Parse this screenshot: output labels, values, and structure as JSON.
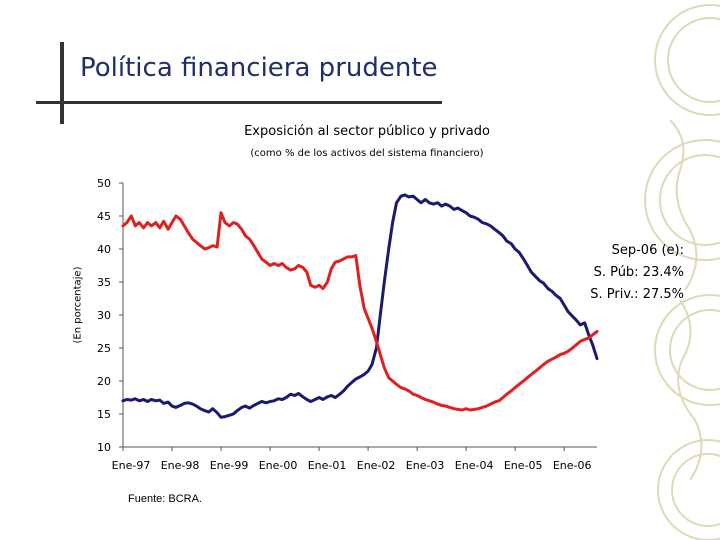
{
  "slide": {
    "title": "Política financiera prudente",
    "source": "Fuente: BCRA."
  },
  "colors": {
    "title": "#1f2f6b",
    "publico": "#1a1a6e",
    "privado": "#e02020",
    "axis": "#555555",
    "watermark": "#d6d2a6"
  },
  "chart_data": {
    "type": "line",
    "title": "Exposición al sector público y privado",
    "subtitle": "(como % de los activos del sistema financiero)",
    "ylabel": "(En porcentaje)",
    "xlabel": "",
    "ylim": [
      10,
      50
    ],
    "yticks": [
      10,
      15,
      20,
      25,
      30,
      35,
      40,
      45,
      50
    ],
    "x_start": 1997.0,
    "x_end": 2006.67,
    "xticks": [
      {
        "label": "Ene-97",
        "x": 1997
      },
      {
        "label": "Ene-98",
        "x": 1998
      },
      {
        "label": "Ene-99",
        "x": 1999
      },
      {
        "label": "Ene-00",
        "x": 2000
      },
      {
        "label": "Ene-01",
        "x": 2001
      },
      {
        "label": "Ene-02",
        "x": 2002
      },
      {
        "label": "Ene-03",
        "x": 2003
      },
      {
        "label": "Ene-04",
        "x": 2004
      },
      {
        "label": "Ene-05",
        "x": 2005
      },
      {
        "label": "Ene-06",
        "x": 2006
      }
    ],
    "annotation": [
      "Sep-06 (e):",
      "S. Púb: 23.4%",
      "S. Priv.: 27.5%"
    ],
    "series": [
      {
        "name": "Sector público",
        "color": "#1a1a6e",
        "points": [
          [
            1997.0,
            17.0
          ],
          [
            1997.08,
            17.2
          ],
          [
            1997.17,
            17.1
          ],
          [
            1997.25,
            17.3
          ],
          [
            1997.33,
            17.0
          ],
          [
            1997.42,
            17.2
          ],
          [
            1997.5,
            16.9
          ],
          [
            1997.58,
            17.2
          ],
          [
            1997.67,
            17.0
          ],
          [
            1997.75,
            17.1
          ],
          [
            1997.83,
            16.6
          ],
          [
            1997.92,
            16.8
          ],
          [
            1998.0,
            16.2
          ],
          [
            1998.08,
            16.0
          ],
          [
            1998.17,
            16.3
          ],
          [
            1998.25,
            16.6
          ],
          [
            1998.33,
            16.7
          ],
          [
            1998.42,
            16.5
          ],
          [
            1998.5,
            16.2
          ],
          [
            1998.58,
            15.8
          ],
          [
            1998.67,
            15.5
          ],
          [
            1998.75,
            15.3
          ],
          [
            1998.83,
            15.8
          ],
          [
            1998.92,
            15.2
          ],
          [
            1999.0,
            14.5
          ],
          [
            1999.08,
            14.6
          ],
          [
            1999.17,
            14.8
          ],
          [
            1999.25,
            15.0
          ],
          [
            1999.33,
            15.5
          ],
          [
            1999.42,
            16.0
          ],
          [
            1999.5,
            16.2
          ],
          [
            1999.58,
            15.9
          ],
          [
            1999.67,
            16.3
          ],
          [
            1999.75,
            16.6
          ],
          [
            1999.83,
            16.9
          ],
          [
            1999.92,
            16.7
          ],
          [
            2000.0,
            16.9
          ],
          [
            2000.08,
            17.0
          ],
          [
            2000.17,
            17.3
          ],
          [
            2000.25,
            17.2
          ],
          [
            2000.33,
            17.5
          ],
          [
            2000.42,
            18.0
          ],
          [
            2000.5,
            17.8
          ],
          [
            2000.58,
            18.1
          ],
          [
            2000.67,
            17.6
          ],
          [
            2000.75,
            17.2
          ],
          [
            2000.83,
            16.9
          ],
          [
            2000.92,
            17.2
          ],
          [
            2001.0,
            17.5
          ],
          [
            2001.08,
            17.2
          ],
          [
            2001.17,
            17.6
          ],
          [
            2001.25,
            17.8
          ],
          [
            2001.33,
            17.5
          ],
          [
            2001.42,
            18.0
          ],
          [
            2001.5,
            18.5
          ],
          [
            2001.58,
            19.2
          ],
          [
            2001.67,
            19.8
          ],
          [
            2001.75,
            20.3
          ],
          [
            2001.83,
            20.6
          ],
          [
            2001.92,
            21.0
          ],
          [
            2002.0,
            21.5
          ],
          [
            2002.08,
            22.5
          ],
          [
            2002.17,
            25.0
          ],
          [
            2002.25,
            30.0
          ],
          [
            2002.33,
            35.0
          ],
          [
            2002.42,
            40.0
          ],
          [
            2002.5,
            44.0
          ],
          [
            2002.58,
            47.0
          ],
          [
            2002.67,
            48.0
          ],
          [
            2002.75,
            48.2
          ],
          [
            2002.83,
            47.9
          ],
          [
            2002.92,
            48.0
          ],
          [
            2003.0,
            47.5
          ],
          [
            2003.08,
            47.0
          ],
          [
            2003.17,
            47.5
          ],
          [
            2003.25,
            47.0
          ],
          [
            2003.33,
            46.8
          ],
          [
            2003.42,
            47.0
          ],
          [
            2003.5,
            46.5
          ],
          [
            2003.58,
            46.8
          ],
          [
            2003.67,
            46.5
          ],
          [
            2003.75,
            46.0
          ],
          [
            2003.83,
            46.2
          ],
          [
            2003.92,
            45.8
          ],
          [
            2004.0,
            45.5
          ],
          [
            2004.08,
            45.0
          ],
          [
            2004.17,
            44.8
          ],
          [
            2004.25,
            44.5
          ],
          [
            2004.33,
            44.0
          ],
          [
            2004.42,
            43.8
          ],
          [
            2004.5,
            43.5
          ],
          [
            2004.58,
            43.0
          ],
          [
            2004.67,
            42.5
          ],
          [
            2004.75,
            42.0
          ],
          [
            2004.83,
            41.2
          ],
          [
            2004.92,
            40.8
          ],
          [
            2005.0,
            40.0
          ],
          [
            2005.08,
            39.5
          ],
          [
            2005.17,
            38.5
          ],
          [
            2005.25,
            37.5
          ],
          [
            2005.33,
            36.5
          ],
          [
            2005.42,
            35.8
          ],
          [
            2005.5,
            35.2
          ],
          [
            2005.58,
            34.8
          ],
          [
            2005.67,
            34.0
          ],
          [
            2005.75,
            33.6
          ],
          [
            2005.83,
            33.0
          ],
          [
            2005.92,
            32.5
          ],
          [
            2006.0,
            31.5
          ],
          [
            2006.08,
            30.5
          ],
          [
            2006.17,
            29.8
          ],
          [
            2006.25,
            29.2
          ],
          [
            2006.33,
            28.5
          ],
          [
            2006.42,
            28.8
          ],
          [
            2006.5,
            27.0
          ],
          [
            2006.58,
            25.5
          ],
          [
            2006.67,
            23.4
          ]
        ]
      },
      {
        "name": "Sector privado",
        "color": "#e02020",
        "points": [
          [
            1997.0,
            43.5
          ],
          [
            1997.08,
            44.0
          ],
          [
            1997.17,
            45.0
          ],
          [
            1997.25,
            43.5
          ],
          [
            1997.33,
            44.0
          ],
          [
            1997.42,
            43.2
          ],
          [
            1997.5,
            44.0
          ],
          [
            1997.58,
            43.5
          ],
          [
            1997.67,
            44.0
          ],
          [
            1997.75,
            43.2
          ],
          [
            1997.83,
            44.2
          ],
          [
            1997.92,
            43.0
          ],
          [
            1998.0,
            44.0
          ],
          [
            1998.08,
            45.0
          ],
          [
            1998.17,
            44.5
          ],
          [
            1998.25,
            43.5
          ],
          [
            1998.33,
            42.5
          ],
          [
            1998.42,
            41.5
          ],
          [
            1998.5,
            41.0
          ],
          [
            1998.58,
            40.5
          ],
          [
            1998.67,
            40.0
          ],
          [
            1998.75,
            40.2
          ],
          [
            1998.83,
            40.5
          ],
          [
            1998.92,
            40.3
          ],
          [
            1999.0,
            45.5
          ],
          [
            1999.08,
            44.0
          ],
          [
            1999.17,
            43.5
          ],
          [
            1999.25,
            44.0
          ],
          [
            1999.33,
            43.8
          ],
          [
            1999.42,
            43.0
          ],
          [
            1999.5,
            42.0
          ],
          [
            1999.58,
            41.5
          ],
          [
            1999.67,
            40.5
          ],
          [
            1999.75,
            39.5
          ],
          [
            1999.83,
            38.5
          ],
          [
            1999.92,
            38.0
          ],
          [
            2000.0,
            37.5
          ],
          [
            2000.08,
            37.8
          ],
          [
            2000.17,
            37.5
          ],
          [
            2000.25,
            37.8
          ],
          [
            2000.33,
            37.2
          ],
          [
            2000.42,
            36.8
          ],
          [
            2000.5,
            37.0
          ],
          [
            2000.58,
            37.5
          ],
          [
            2000.67,
            37.2
          ],
          [
            2000.75,
            36.5
          ],
          [
            2000.83,
            34.5
          ],
          [
            2000.92,
            34.2
          ],
          [
            2001.0,
            34.5
          ],
          [
            2001.08,
            34.0
          ],
          [
            2001.17,
            35.0
          ],
          [
            2001.25,
            37.0
          ],
          [
            2001.33,
            38.0
          ],
          [
            2001.42,
            38.2
          ],
          [
            2001.5,
            38.5
          ],
          [
            2001.58,
            38.8
          ],
          [
            2001.67,
            38.8
          ],
          [
            2001.75,
            39.0
          ],
          [
            2001.83,
            34.5
          ],
          [
            2001.92,
            31.0
          ],
          [
            2002.0,
            29.5
          ],
          [
            2002.08,
            28.0
          ],
          [
            2002.17,
            26.0
          ],
          [
            2002.25,
            24.0
          ],
          [
            2002.33,
            22.0
          ],
          [
            2002.42,
            20.5
          ],
          [
            2002.5,
            20.0
          ],
          [
            2002.58,
            19.5
          ],
          [
            2002.67,
            19.0
          ],
          [
            2002.75,
            18.8
          ],
          [
            2002.83,
            18.5
          ],
          [
            2002.92,
            18.0
          ],
          [
            2003.0,
            17.8
          ],
          [
            2003.08,
            17.5
          ],
          [
            2003.17,
            17.2
          ],
          [
            2003.25,
            17.0
          ],
          [
            2003.33,
            16.8
          ],
          [
            2003.42,
            16.5
          ],
          [
            2003.5,
            16.3
          ],
          [
            2003.58,
            16.2
          ],
          [
            2003.67,
            16.0
          ],
          [
            2003.75,
            15.8
          ],
          [
            2003.83,
            15.7
          ],
          [
            2003.92,
            15.6
          ],
          [
            2004.0,
            15.8
          ],
          [
            2004.08,
            15.6
          ],
          [
            2004.17,
            15.7
          ],
          [
            2004.25,
            15.8
          ],
          [
            2004.33,
            16.0
          ],
          [
            2004.42,
            16.2
          ],
          [
            2004.5,
            16.5
          ],
          [
            2004.58,
            16.8
          ],
          [
            2004.67,
            17.0
          ],
          [
            2004.75,
            17.5
          ],
          [
            2004.83,
            18.0
          ],
          [
            2004.92,
            18.5
          ],
          [
            2005.0,
            19.0
          ],
          [
            2005.08,
            19.5
          ],
          [
            2005.17,
            20.0
          ],
          [
            2005.25,
            20.5
          ],
          [
            2005.33,
            21.0
          ],
          [
            2005.42,
            21.5
          ],
          [
            2005.5,
            22.0
          ],
          [
            2005.58,
            22.5
          ],
          [
            2005.67,
            23.0
          ],
          [
            2005.75,
            23.3
          ],
          [
            2005.83,
            23.6
          ],
          [
            2005.92,
            24.0
          ],
          [
            2006.0,
            24.2
          ],
          [
            2006.08,
            24.5
          ],
          [
            2006.17,
            25.0
          ],
          [
            2006.25,
            25.5
          ],
          [
            2006.33,
            26.0
          ],
          [
            2006.42,
            26.3
          ],
          [
            2006.5,
            26.5
          ],
          [
            2006.58,
            27.0
          ],
          [
            2006.67,
            27.5
          ]
        ]
      }
    ]
  }
}
